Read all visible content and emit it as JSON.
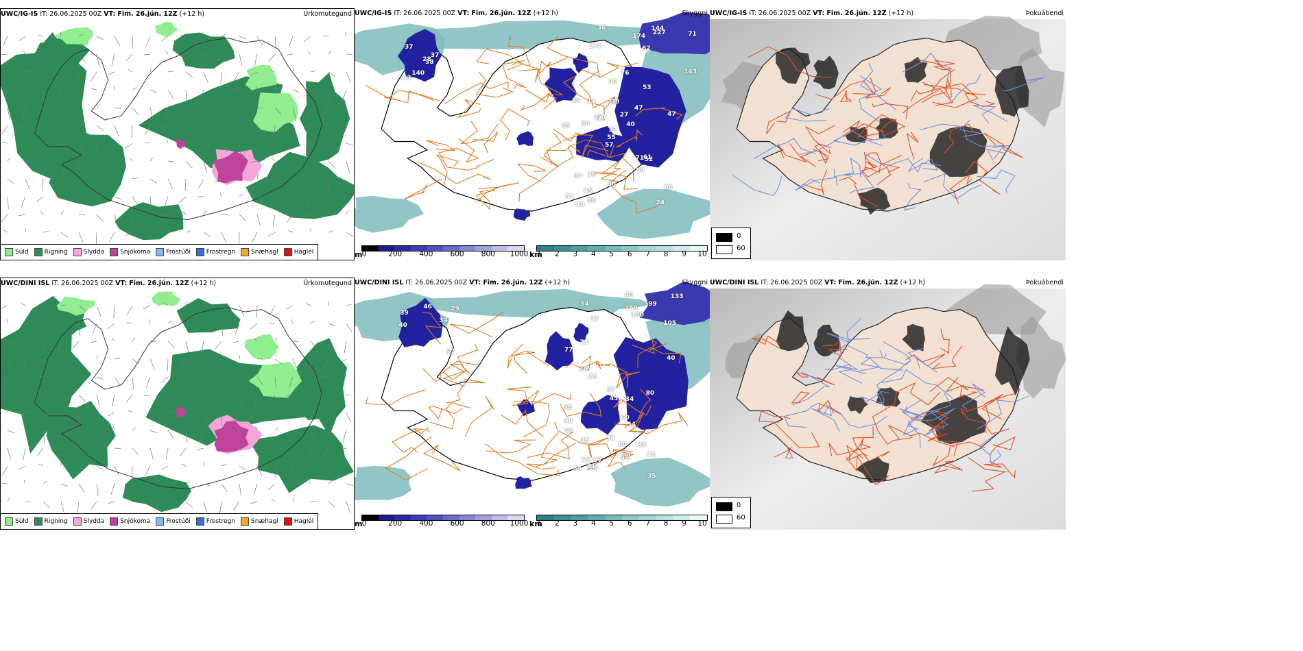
{
  "rows": [
    {
      "model": "UWC/IG-IS",
      "it_label": "IT:",
      "it_value": "26.06.2025 00Z",
      "vt_label": "VT:",
      "vt_value": "Fim. 26.jún. 12Z",
      "lead": "(+12 h)",
      "visibility_labels": [
        "38",
        "37",
        "28",
        "43",
        "37",
        "140",
        "144",
        "174",
        "227",
        "62",
        "36",
        "143",
        "174",
        "71",
        "57",
        "47",
        "49",
        "33",
        "27",
        "34",
        "10",
        "51",
        "45",
        "38",
        "40",
        "52",
        "34",
        "30",
        "35",
        "71",
        "47",
        "55",
        "40",
        "33",
        "34",
        "53",
        "36",
        "24",
        "66",
        "61",
        "76",
        "73",
        "30",
        "69",
        "38"
      ]
    },
    {
      "model": "UWC/DINI ISL",
      "it_label": "IT:",
      "it_value": "26.06.2025 00Z",
      "vt_label": "VT:",
      "vt_value": "Fim. 26.jún. 12Z",
      "lead": "(+12 h)",
      "visibility_labels": [
        "40",
        "46",
        "34",
        "29",
        "39",
        "57",
        "37",
        "599",
        "159",
        "133",
        "150",
        "105",
        "40",
        "54",
        "36",
        "45",
        "32",
        "38",
        "60",
        "39",
        "35",
        "41",
        "40",
        "37",
        "63",
        "45",
        "54",
        "73",
        "64",
        "95",
        "90",
        "35",
        "34",
        "34",
        "31",
        "62",
        "80",
        "77",
        "67",
        "28",
        "80"
      ]
    }
  ],
  "panels": {
    "precip": {
      "title": "Úrkomutegund",
      "legend": [
        {
          "label": "Súld",
          "color": "#90ee90"
        },
        {
          "label": "Rigning",
          "color": "#2e8b57"
        },
        {
          "label": "Slydda",
          "color": "#f4a6d7"
        },
        {
          "label": "Snjókoma",
          "color": "#c0429a"
        },
        {
          "label": "Frostúði",
          "color": "#87b9ef"
        },
        {
          "label": "Frostregn",
          "color": "#2f6fd6"
        },
        {
          "label": "Snæhagl",
          "color": "#f5a623"
        },
        {
          "label": "Haglél",
          "color": "#e01010"
        }
      ]
    },
    "visibility": {
      "title": "Skyggni",
      "elev_unit": "m",
      "elev_ticks": [
        "0",
        "200",
        "400",
        "600",
        "800",
        "1000"
      ],
      "elev_colors": [
        "#000000",
        "#1c1c8c",
        "#2a2aa8",
        "#3b3bb8",
        "#5050c0",
        "#6a6ac8",
        "#8585d2",
        "#a0a0dc",
        "#bcbce6",
        "#d8d8f0"
      ],
      "vis_unit": "km",
      "vis_ticks": [
        "1",
        "2",
        "3",
        "4",
        "5",
        "6",
        "7",
        "8",
        "9",
        "10"
      ],
      "vis_colors": [
        "#2f8080",
        "#3d8f8f",
        "#4f9e9e",
        "#62adad",
        "#76bcbc",
        "#8ccaca",
        "#a2d7d7",
        "#b9e3e3",
        "#d1eeee",
        "#e8f7f7"
      ]
    },
    "fog": {
      "title": "Þokuábendi",
      "legend": [
        {
          "label": "0",
          "color": "#000000"
        },
        {
          "label": "60",
          "color": "#ffffff"
        }
      ]
    }
  }
}
